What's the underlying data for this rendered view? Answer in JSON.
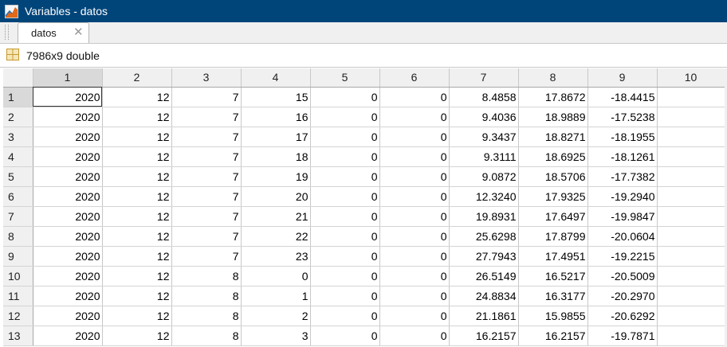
{
  "window": {
    "title": "Variables - datos"
  },
  "tabs": [
    {
      "label": "datos",
      "close": "✕"
    }
  ],
  "variable_info": {
    "size_label": "7986x9 double"
  },
  "columns": [
    "1",
    "2",
    "3",
    "4",
    "5",
    "6",
    "7",
    "8",
    "9",
    "10"
  ],
  "rows": [
    {
      "idx": "1",
      "cells": [
        "2020",
        "12",
        "7",
        "15",
        "0",
        "0",
        "8.4858",
        "17.8672",
        "-18.4415",
        ""
      ]
    },
    {
      "idx": "2",
      "cells": [
        "2020",
        "12",
        "7",
        "16",
        "0",
        "0",
        "9.4036",
        "18.9889",
        "-17.5238",
        ""
      ]
    },
    {
      "idx": "3",
      "cells": [
        "2020",
        "12",
        "7",
        "17",
        "0",
        "0",
        "9.3437",
        "18.8271",
        "-18.1955",
        ""
      ]
    },
    {
      "idx": "4",
      "cells": [
        "2020",
        "12",
        "7",
        "18",
        "0",
        "0",
        "9.3111",
        "18.6925",
        "-18.1261",
        ""
      ]
    },
    {
      "idx": "5",
      "cells": [
        "2020",
        "12",
        "7",
        "19",
        "0",
        "0",
        "9.0872",
        "18.5706",
        "-17.7382",
        ""
      ]
    },
    {
      "idx": "6",
      "cells": [
        "2020",
        "12",
        "7",
        "20",
        "0",
        "0",
        "12.3240",
        "17.9325",
        "-19.2940",
        ""
      ]
    },
    {
      "idx": "7",
      "cells": [
        "2020",
        "12",
        "7",
        "21",
        "0",
        "0",
        "19.8931",
        "17.6497",
        "-19.9847",
        ""
      ]
    },
    {
      "idx": "8",
      "cells": [
        "2020",
        "12",
        "7",
        "22",
        "0",
        "0",
        "25.6298",
        "17.8799",
        "-20.0604",
        ""
      ]
    },
    {
      "idx": "9",
      "cells": [
        "2020",
        "12",
        "7",
        "23",
        "0",
        "0",
        "27.7943",
        "17.4951",
        "-19.2215",
        ""
      ]
    },
    {
      "idx": "10",
      "cells": [
        "2020",
        "12",
        "8",
        "0",
        "0",
        "0",
        "26.5149",
        "16.5217",
        "-20.5009",
        ""
      ]
    },
    {
      "idx": "11",
      "cells": [
        "2020",
        "12",
        "8",
        "1",
        "0",
        "0",
        "24.8834",
        "16.3177",
        "-20.2970",
        ""
      ]
    },
    {
      "idx": "12",
      "cells": [
        "2020",
        "12",
        "8",
        "2",
        "0",
        "0",
        "21.1861",
        "15.9855",
        "-20.6292",
        ""
      ]
    },
    {
      "idx": "13",
      "cells": [
        "2020",
        "12",
        "8",
        "3",
        "0",
        "0",
        "16.2157",
        "16.2157",
        "-19.7871",
        ""
      ]
    }
  ]
}
